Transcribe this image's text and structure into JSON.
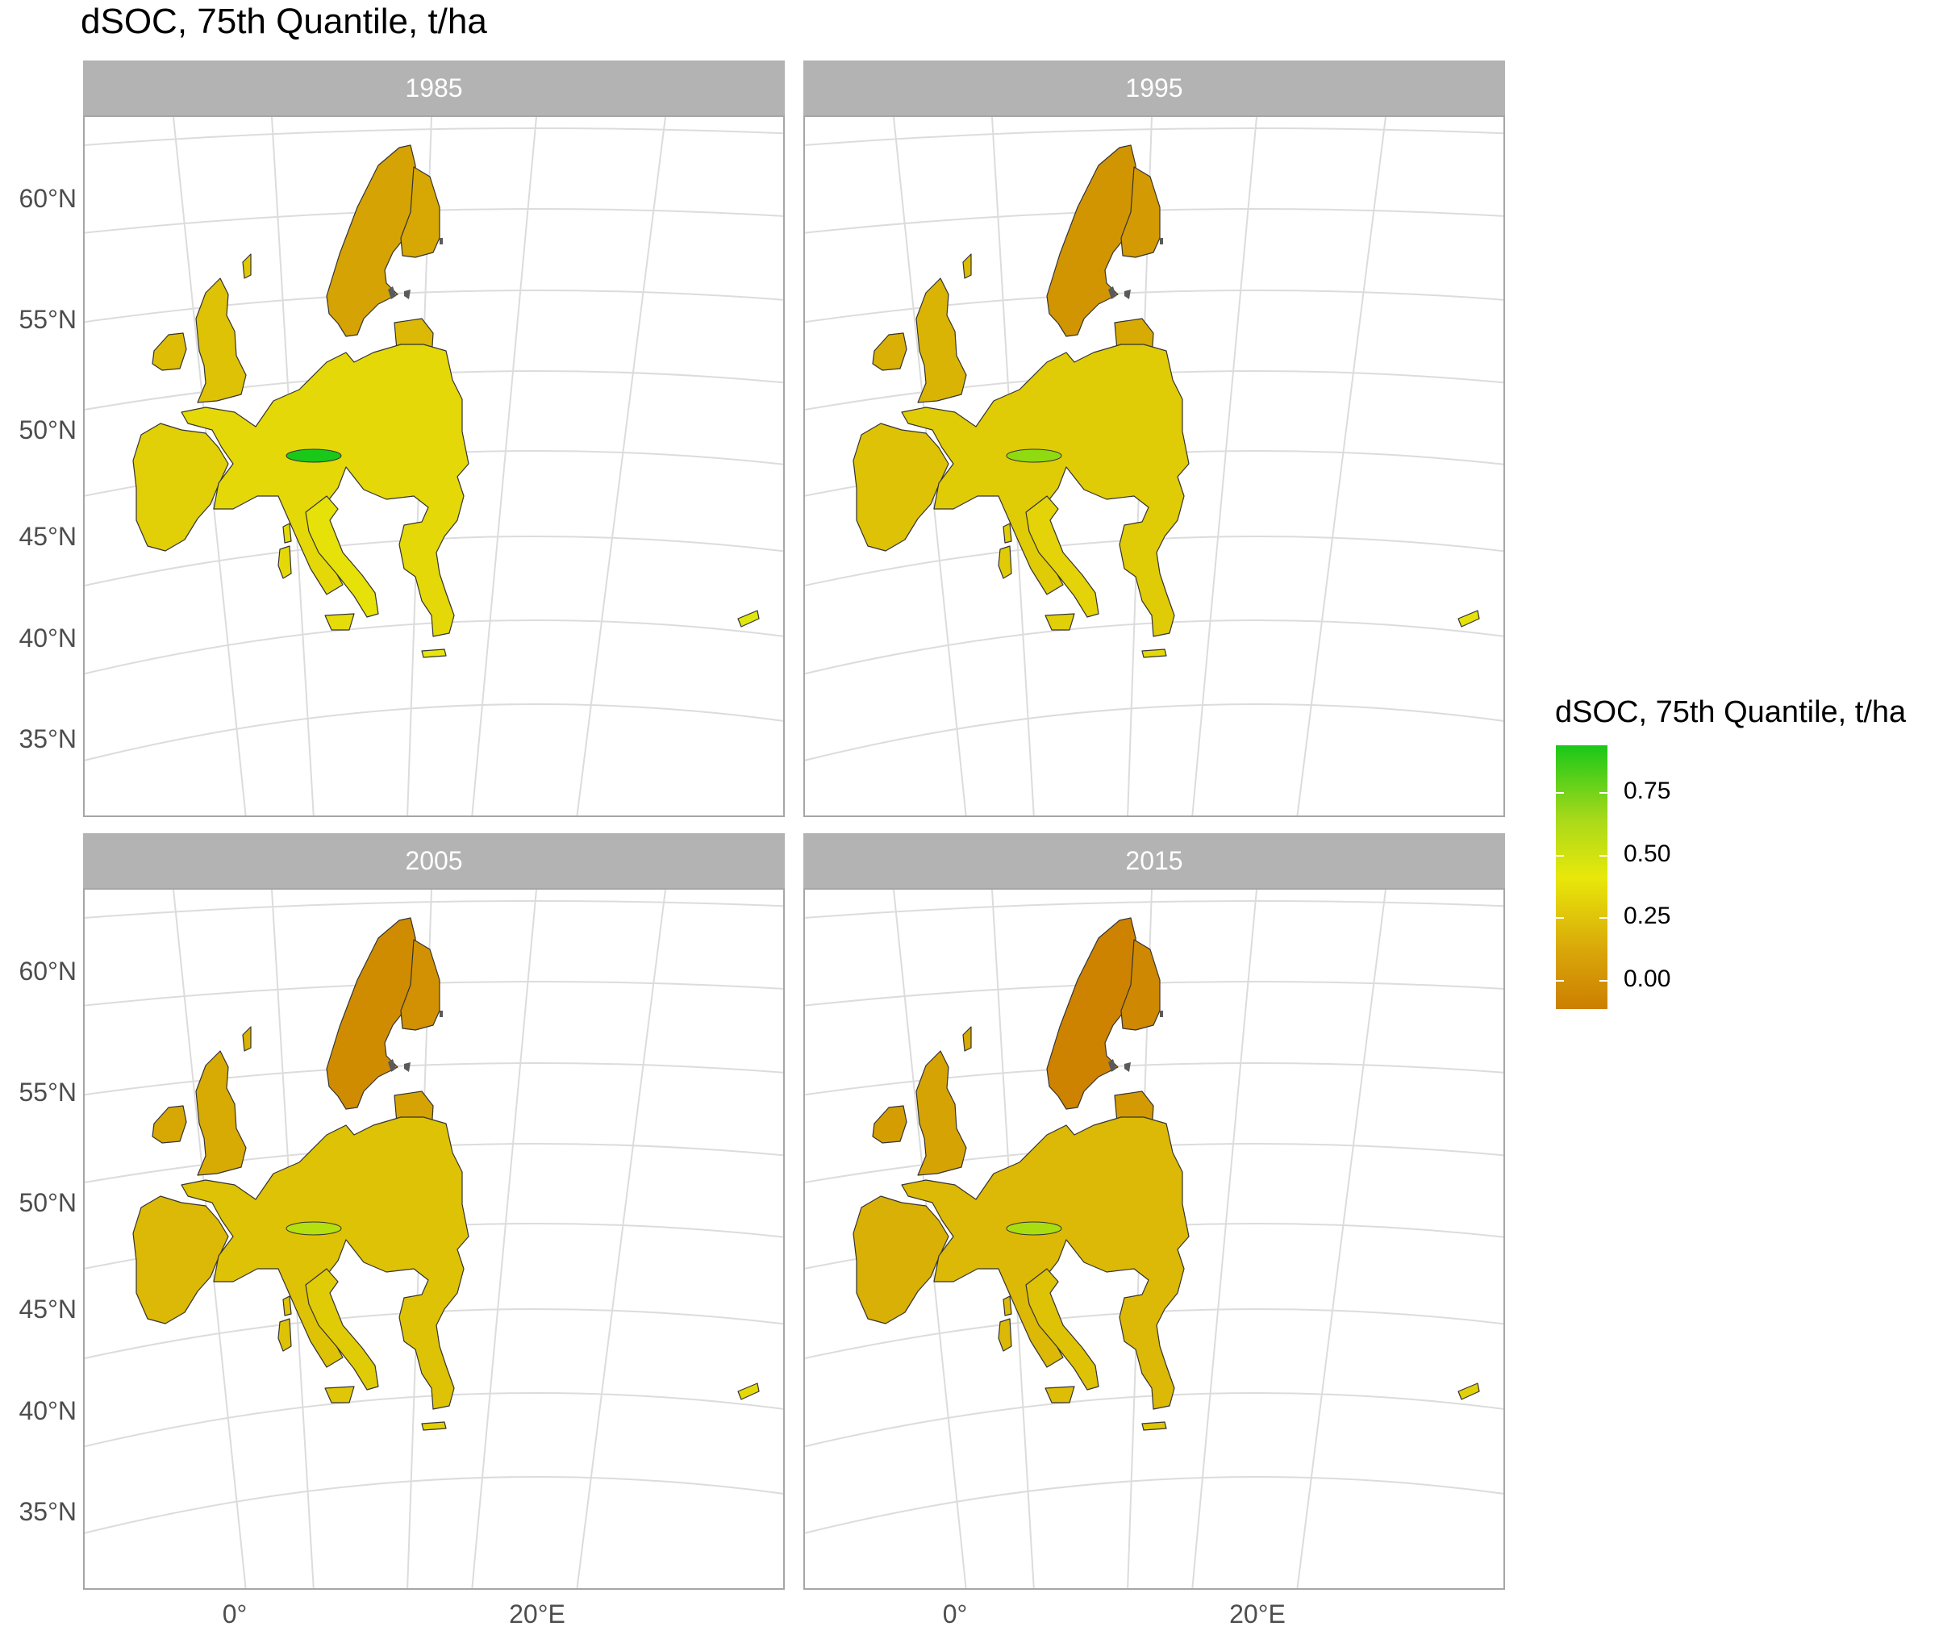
{
  "title": "dSOC, 75th Quantile, t/ha",
  "panels": [
    {
      "label": "1985",
      "mean_value": 0.28,
      "hotspot_value": 0.95
    },
    {
      "label": "1995",
      "mean_value": 0.22,
      "hotspot_value": 0.62
    },
    {
      "label": "2005",
      "mean_value": 0.18,
      "hotspot_value": 0.52
    },
    {
      "label": "2015",
      "mean_value": 0.14,
      "hotspot_value": 0.55
    }
  ],
  "y_axis": [
    "60°N",
    "55°N",
    "50°N",
    "45°N",
    "40°N",
    "35°N"
  ],
  "x_axis": [
    "0°",
    "20°E"
  ],
  "legend": {
    "title": "dSOC, 75th Quantile, t/ha",
    "ticks": [
      "0.75",
      "0.50",
      "0.25",
      "0.00"
    ],
    "tick_values": [
      0.75,
      0.5,
      0.25,
      0.0
    ],
    "range": [
      -0.1,
      0.95
    ],
    "colors": [
      "#cc7f00",
      "#e8e80a",
      "#19c819"
    ]
  },
  "colors": {
    "strip": "#b3b3b3",
    "graticule": "#dcdcdc",
    "low": "#cc7f00",
    "mid": "#e8e80a",
    "high": "#19c819",
    "lakes": "#5a5a5a"
  }
}
